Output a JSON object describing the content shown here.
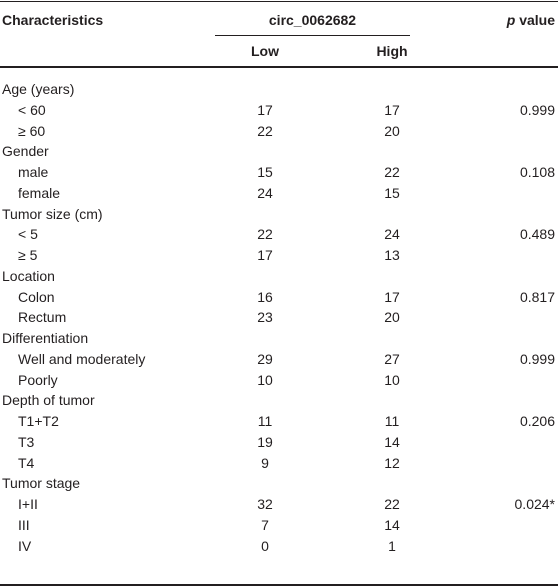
{
  "header": {
    "characteristics": "Characteristics",
    "group": "circ_0062682",
    "p_italic": "p",
    "p_rest": "value",
    "low": "Low",
    "high": "High"
  },
  "groups": [
    {
      "label": "Age (years)",
      "rows": [
        [
          "< 60",
          "17",
          "17",
          "0.999"
        ],
        [
          "≥ 60",
          "22",
          "20",
          null
        ]
      ]
    },
    {
      "label": "Gender",
      "rows": [
        [
          "male",
          "15",
          "22",
          "0.108"
        ],
        [
          "female",
          "24",
          "15",
          null
        ]
      ]
    },
    {
      "label": "Tumor size (cm)",
      "rows": [
        [
          "< 5",
          "22",
          "24",
          "0.489"
        ],
        [
          "≥ 5",
          "17",
          "13",
          null
        ]
      ]
    },
    {
      "label": "Location",
      "rows": [
        [
          "Colon",
          "16",
          "17",
          "0.817"
        ],
        [
          "Rectum",
          "23",
          "20",
          null
        ]
      ]
    },
    {
      "label": "Differentiation",
      "rows": [
        [
          "Well and moderately",
          "29",
          "27",
          "0.999"
        ],
        [
          "Poorly",
          "10",
          "10",
          null
        ]
      ]
    },
    {
      "label": "Depth of tumor",
      "rows": [
        [
          "T1+T2",
          "11",
          "11",
          "0.206"
        ],
        [
          "T3",
          "19",
          "14",
          null
        ],
        [
          "T4",
          "9",
          "12",
          null
        ]
      ]
    },
    {
      "label": "Tumor stage",
      "rows": [
        [
          "I+II",
          "32",
          "22",
          "0.024*"
        ],
        [
          "III",
          "7",
          "14",
          null
        ],
        [
          "IV",
          "0",
          "1",
          null
        ]
      ]
    }
  ]
}
